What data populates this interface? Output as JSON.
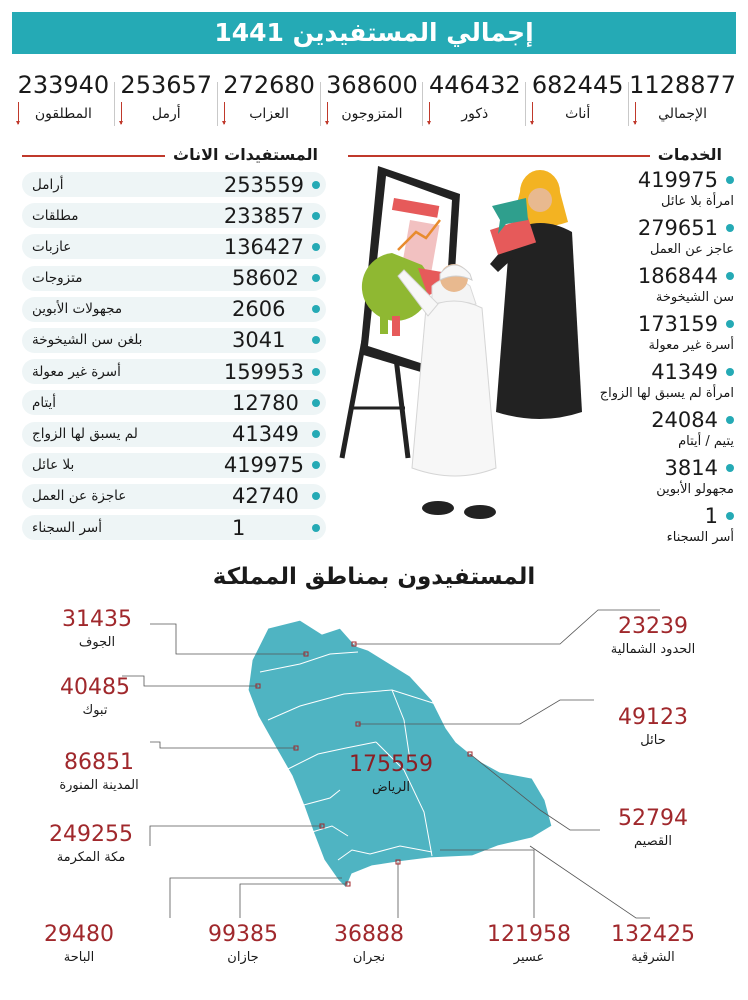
{
  "title": "إجمالي المستفيدين 1441",
  "totals": [
    {
      "value": "1128877",
      "label": "الإجمالي"
    },
    {
      "value": "682445",
      "label": "أناث"
    },
    {
      "value": "446432",
      "label": "ذكور"
    },
    {
      "value": "368600",
      "label": "المتزوجون"
    },
    {
      "value": "272680",
      "label": "العزاب"
    },
    {
      "value": "253657",
      "label": "أرمل"
    },
    {
      "value": "233940",
      "label": "المطلقون"
    }
  ],
  "female": {
    "title": "المستفيدات الاناث",
    "rows": [
      {
        "value": "253559",
        "label": "أرامل"
      },
      {
        "value": "233857",
        "label": "مطلقات"
      },
      {
        "value": "136427",
        "label": "عازبات"
      },
      {
        "value": "58602",
        "label": "متزوجات"
      },
      {
        "value": "2606",
        "label": "مجهولات الأبوين"
      },
      {
        "value": "3041",
        "label": "بلغن سن الشيخوخة"
      },
      {
        "value": "159953",
        "label": "أسرة غير معولة"
      },
      {
        "value": "12780",
        "label": "أيتام"
      },
      {
        "value": "41349",
        "label": "لم يسبق لها الزواج"
      },
      {
        "value": "419975",
        "label": "بلا عائل"
      },
      {
        "value": "42740",
        "label": "عاجزة عن العمل"
      },
      {
        "value": "1",
        "label": "أسر السجناء"
      }
    ]
  },
  "services": {
    "title": "الخدمات",
    "items": [
      {
        "value": "419975",
        "label": "امرأة بلا عائل"
      },
      {
        "value": "279651",
        "label": "عاجز عن العمل"
      },
      {
        "value": "186844",
        "label": "سن الشيخوخة"
      },
      {
        "value": "173159",
        "label": "أسرة غير معولة"
      },
      {
        "value": "41349",
        "label": "امرأة لم يسبق لها الزواج"
      },
      {
        "value": "24084",
        "label": "يتيم / أيتام"
      },
      {
        "value": "3814",
        "label": "مجهولو الأبوين"
      },
      {
        "value": "1",
        "label": "أسر السجناء"
      }
    ]
  },
  "map": {
    "title": "المستفيدون بمناطق المملكة",
    "regions": {
      "jouf": {
        "value": "31435",
        "label": "الجوف"
      },
      "tabuk": {
        "value": "40485",
        "label": "تبوك"
      },
      "madinah": {
        "value": "86851",
        "label": "المدينة المنورة"
      },
      "makkah": {
        "value": "249255",
        "label": "مكة المكرمة"
      },
      "northern": {
        "value": "23239",
        "label": "الحدود الشمالية"
      },
      "hail": {
        "value": "49123",
        "label": "حائل"
      },
      "qassim": {
        "value": "52794",
        "label": "القصيم"
      },
      "riyadh": {
        "value": "175559",
        "label": "الرياض"
      },
      "baha": {
        "value": "29480",
        "label": "الباحة"
      },
      "jazan": {
        "value": "99385",
        "label": "جازان"
      },
      "najran": {
        "value": "36888",
        "label": "نجران"
      },
      "asir": {
        "value": "121958",
        "label": "عسير"
      },
      "eastern": {
        "value": "132425",
        "label": "الشرقية"
      }
    }
  },
  "colors": {
    "accent": "#25aab5",
    "rule": "#c0392b",
    "number": "#a0282c"
  }
}
